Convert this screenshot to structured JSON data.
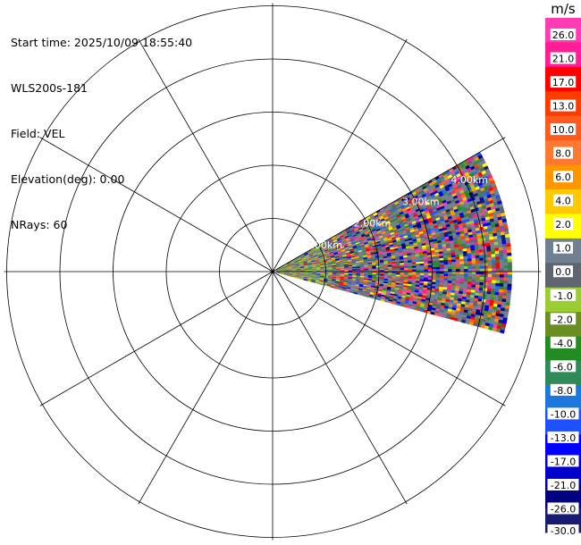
{
  "header": {
    "start_time": "Start time: 2025/10/09 18:55:40",
    "instrument": "WLS200s-181",
    "field": "Field: VEL",
    "elevation": "Elevation(deg): 0.00",
    "nrays": "NRays: 60"
  },
  "chart_data": {
    "type": "heatmap",
    "projection": "polar-ppi",
    "field": "VEL",
    "units": "m/s",
    "sector_azimuth_deg": [
      60,
      105
    ],
    "max_range_km": 4.5,
    "nrays": 60,
    "range_ring_labels": [
      "1.00km",
      "2.00km",
      "3.00km",
      "4.00km"
    ],
    "radial_spokes_deg": [
      0,
      30,
      60,
      90,
      120,
      150,
      180,
      210,
      240,
      270,
      300,
      330
    ],
    "colorbar": {
      "label": "m/s",
      "tick_labels": [
        "26.0",
        "21.0",
        "17.0",
        "13.0",
        "10.0",
        "8.0",
        "6.0",
        "4.0",
        "2.0",
        "1.0",
        "0.0",
        "-1.0",
        "-2.0",
        "-4.0",
        "-6.0",
        "-8.0",
        "-10.0",
        "-13.0",
        "-17.0",
        "-21.0",
        "-26.0",
        "-30.0"
      ],
      "colors": [
        "#ff3cb4",
        "#ff1e96",
        "#ff0000",
        "#ff3c00",
        "#ff5a1e",
        "#ff7832",
        "#ff9600",
        "#ffc800",
        "#ffff00",
        "#708090",
        "#5e6470",
        "#9acd32",
        "#6b8e23",
        "#228b22",
        "#2e8b57",
        "#1e78dc",
        "#1e50ff",
        "#0000ff",
        "#0000cd",
        "#000080",
        "#1a1a6e"
      ]
    }
  }
}
